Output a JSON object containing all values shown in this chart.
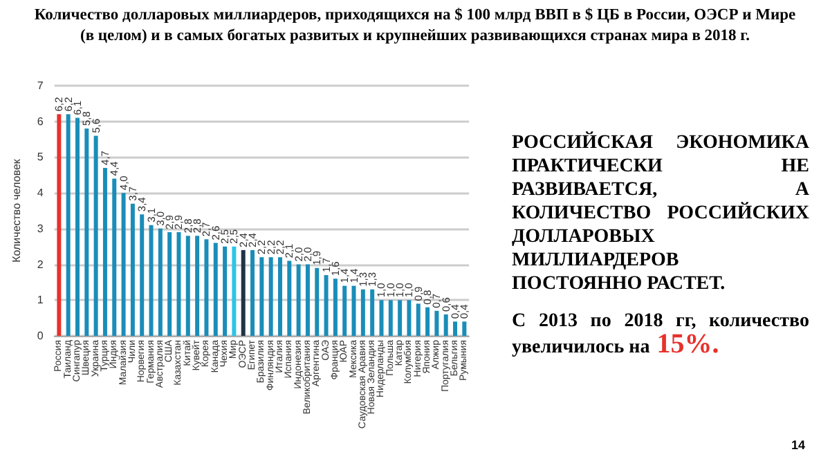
{
  "chart_data": {
    "type": "bar",
    "title": "Количество долларовых миллиардеров, приходящихся на $ 100 млрд ВВП в $ ЦБ в России, ОЭСР и Мире (в целом) и в самых богатых развитых и крупнейших развивающихся странах мира в 2018 г.",
    "ylabel": "Количество человек",
    "categories": [
      "Россия",
      "Таиланд",
      "Сингапур",
      "Швеция",
      "Украина",
      "Турция",
      "Индия",
      "Малайзия",
      "Чили",
      "Норвегия",
      "Германия",
      "Австралия",
      "США",
      "Казахстан",
      "Китай",
      "Кувейт",
      "Корея",
      "Канада",
      "Чехия",
      "Мир",
      "ОЭСР",
      "Египет",
      "Бразилия",
      "Финляндия",
      "Италия",
      "Испания",
      "Индонезия",
      "Великобритания",
      "Аргентина",
      "ОАЭ",
      "Франция",
      "ЮАР",
      "Мексика",
      "Саудовская Аравия",
      "Новая Зеландия",
      "Нидерланды",
      "Польша",
      "Катар",
      "Колумбия",
      "Нигерия",
      "Япония",
      "Алжир",
      "Португалия",
      "Бельгия",
      "Румыния"
    ],
    "values": [
      6.2,
      6.2,
      6.1,
      5.8,
      5.6,
      4.7,
      4.4,
      4.0,
      3.7,
      3.4,
      3.1,
      3.0,
      2.9,
      2.9,
      2.8,
      2.8,
      2.7,
      2.6,
      2.5,
      2.5,
      2.4,
      2.4,
      2.2,
      2.2,
      2.2,
      2.1,
      2.0,
      2.0,
      1.9,
      1.7,
      1.6,
      1.4,
      1.4,
      1.3,
      1.3,
      1.0,
      1.0,
      1.0,
      1.0,
      0.9,
      0.8,
      0.7,
      0.6,
      0.4,
      0.4
    ],
    "value_labels": [
      "6,2",
      "6,2",
      "6,1",
      "5,8",
      "5,6",
      "4,7",
      "4,4",
      "4,0",
      "3,7",
      "3,4",
      "3,1",
      "3,0",
      "2,9",
      "2,9",
      "2,8",
      "2,8",
      "2,7",
      "2,6",
      "2,5",
      "2,5",
      "2,4",
      "2,4",
      "2,2",
      "2,2",
      "2,2",
      "2,1",
      "2,0",
      "2,0",
      "1,9",
      "1,7",
      "1,6",
      "1,4",
      "1,4",
      "1,3",
      "1,3",
      "1,0",
      "1,0",
      "1,0",
      "1,0",
      "0,9",
      "0,8",
      "0,7",
      "0,6",
      "0,4",
      "0,4"
    ],
    "colors": [
      "#e8312b",
      "#1a8db8",
      "#1a8db8",
      "#1a8db8",
      "#1a8db8",
      "#1a8db8",
      "#1a8db8",
      "#1a8db8",
      "#1a8db8",
      "#1a8db8",
      "#1a8db8",
      "#1a8db8",
      "#1a8db8",
      "#1a8db8",
      "#1a8db8",
      "#1a8db8",
      "#1a8db8",
      "#1a8db8",
      "#1a8db8",
      "#2ec4e8",
      "#1e3346",
      "#1a8db8",
      "#1a8db8",
      "#1a8db8",
      "#1a8db8",
      "#1a8db8",
      "#1a8db8",
      "#1a8db8",
      "#1a8db8",
      "#1a8db8",
      "#1a8db8",
      "#1a8db8",
      "#1a8db8",
      "#1a8db8",
      "#1a8db8",
      "#1a8db8",
      "#1a8db8",
      "#1a8db8",
      "#1a8db8",
      "#1a8db8",
      "#1a8db8",
      "#1a8db8",
      "#1a8db8",
      "#1a8db8",
      "#1a8db8"
    ],
    "ylim": [
      0,
      7
    ],
    "yticks": [
      0,
      1,
      2,
      3,
      4,
      5,
      6,
      7
    ],
    "grid": "y",
    "annotations": [
      "РОССИЙСКАЯ ЭКОНОМИКА ПРАКТИЧЕСКИ НЕ РАЗВИВАЕТСЯ, А КОЛИЧЕСТВО РОССИЙСКИХ ДОЛЛАРОВЫХ МИЛЛИАРДЕРОВ ПОСТОЯННО РАСТЕТ.",
      "С 2013 по 2018 гг, количество увеличилось на",
      "15%.",
      "14"
    ]
  }
}
